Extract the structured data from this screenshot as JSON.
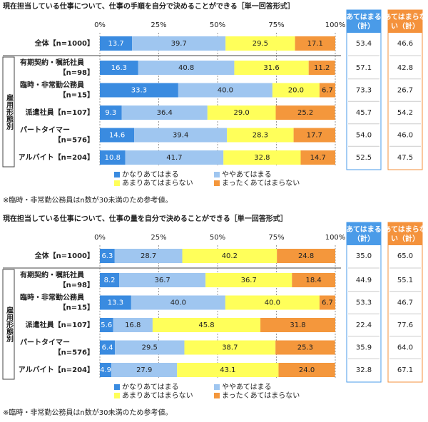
{
  "chart_data": [
    {
      "type": "bar",
      "orientation": "horizontal",
      "stacked": true,
      "title": "現在担当している仕事について、仕事の手順を自分で決めることができる［単一回答形式］",
      "categories": [
        [
          "全体【n=1000】"
        ],
        [
          "有期契約・嘱託社員",
          "【n=98】"
        ],
        [
          "臨時・非常勤公務員",
          "【n=15】"
        ],
        [
          "派遣社員【n=107】"
        ],
        [
          "パートタイマー",
          "【n=576】"
        ],
        [
          "アルバイト【n=204】"
        ]
      ],
      "group_label": "雇用形態別",
      "xlim": [
        0,
        100
      ],
      "xticks": [
        {
          "value": 0,
          "label": "0%"
        },
        {
          "value": 25,
          "label": "25%"
        },
        {
          "value": 50,
          "label": "50%"
        },
        {
          "value": 75,
          "label": "75%"
        },
        {
          "value": 100,
          "label": "100%"
        }
      ],
      "grid": true,
      "series": [
        {
          "name": "かなりあてはまる",
          "color": "#3a8be0",
          "label_color": "#ffffff",
          "values": [
            13.7,
            16.3,
            33.3,
            9.3,
            14.6,
            10.8
          ],
          "value_labels": [
            "13.7",
            "16.3",
            "33.3",
            "9.3",
            "14.6",
            "10.8"
          ]
        },
        {
          "name": "ややあてはまる",
          "color": "#9fc6f0",
          "label_color": "#222222",
          "values": [
            39.7,
            40.8,
            40,
            36.4,
            39.4,
            41.7
          ],
          "value_labels": [
            "39.7",
            "40.8",
            "40.0",
            "36.4",
            "39.4",
            "41.7"
          ]
        },
        {
          "name": "あまりあてはまらない",
          "color": "#ffff5a",
          "label_color": "#222222",
          "values": [
            29.5,
            31.6,
            20,
            29,
            28.3,
            32.8
          ],
          "value_labels": [
            "29.5",
            "31.6",
            "20.0",
            "29.0",
            "28.3",
            "32.8"
          ]
        },
        {
          "name": "まったくあてはまらない",
          "color": "#f4973c",
          "label_color": "#222222",
          "values": [
            17.1,
            11.2,
            6.7,
            25.2,
            17.7,
            14.7
          ],
          "value_labels": [
            "17.1",
            "11.2",
            "6.7",
            "25.2",
            "17.7",
            "14.7"
          ]
        }
      ],
      "summary_columns": [
        {
          "name": [
            "あてはまる",
            "（計）"
          ],
          "color": "#4a9be8",
          "values": [
            53.4,
            57.1,
            73.3,
            45.7,
            54,
            52.5
          ],
          "value_labels": [
            "53.4",
            "57.1",
            "73.3",
            "45.7",
            "54.0",
            "52.5"
          ]
        },
        {
          "name": [
            "あてはまらな",
            "い（計）"
          ],
          "color": "#f4923c",
          "values": [
            46.6,
            42.8,
            26.7,
            54.2,
            46,
            47.5
          ],
          "value_labels": [
            "46.6",
            "42.8",
            "26.7",
            "54.2",
            "46.0",
            "47.5"
          ]
        }
      ],
      "note": "※臨時・非常勤公務員はn数が30未満のため参考値。"
    },
    {
      "type": "bar",
      "orientation": "horizontal",
      "stacked": true,
      "title": "現在担当している仕事について、仕事の量を自分で決めることができる［単一回答形式］",
      "categories": [
        [
          "全体【n=1000】"
        ],
        [
          "有期契約・嘱託社員",
          "【n=98】"
        ],
        [
          "臨時・非常勤公務員",
          "【n=15】"
        ],
        [
          "派遣社員【n=107】"
        ],
        [
          "パートタイマー",
          "【n=576】"
        ],
        [
          "アルバイト【n=204】"
        ]
      ],
      "group_label": "雇用形態別",
      "xlim": [
        0,
        100
      ],
      "xticks": [
        {
          "value": 0,
          "label": "0%"
        },
        {
          "value": 25,
          "label": "25%"
        },
        {
          "value": 50,
          "label": "50%"
        },
        {
          "value": 75,
          "label": "75%"
        },
        {
          "value": 100,
          "label": "100%"
        }
      ],
      "grid": true,
      "series": [
        {
          "name": "かなりあてはまる",
          "color": "#3a8be0",
          "label_color": "#ffffff",
          "values": [
            6.3,
            8.2,
            13.3,
            5.6,
            6.4,
            4.9
          ],
          "value_labels": [
            "6.3",
            "8.2",
            "13.3",
            "5.6",
            "6.4",
            "4.9"
          ]
        },
        {
          "name": "ややあてはまる",
          "color": "#9fc6f0",
          "label_color": "#222222",
          "values": [
            28.7,
            36.7,
            40,
            16.8,
            29.5,
            27.9
          ],
          "value_labels": [
            "28.7",
            "36.7",
            "40.0",
            "16.8",
            "29.5",
            "27.9"
          ]
        },
        {
          "name": "あまりあてはまらない",
          "color": "#ffff5a",
          "label_color": "#222222",
          "values": [
            40.2,
            36.7,
            40,
            45.8,
            38.7,
            43.1
          ],
          "value_labels": [
            "40.2",
            "36.7",
            "40.0",
            "45.8",
            "38.7",
            "43.1"
          ]
        },
        {
          "name": "まったくあてはまらない",
          "color": "#f4973c",
          "label_color": "#222222",
          "values": [
            24.8,
            18.4,
            6.7,
            31.8,
            25.3,
            24
          ],
          "value_labels": [
            "24.8",
            "18.4",
            "6.7",
            "31.8",
            "25.3",
            "24.0"
          ]
        }
      ],
      "summary_columns": [
        {
          "name": [
            "あてはまる",
            "（計）"
          ],
          "color": "#4a9be8",
          "values": [
            35,
            44.9,
            53.3,
            22.4,
            35.9,
            32.8
          ],
          "value_labels": [
            "35.0",
            "44.9",
            "53.3",
            "22.4",
            "35.9",
            "32.8"
          ]
        },
        {
          "name": [
            "あてはまらな",
            "い（計）"
          ],
          "color": "#f4923c",
          "values": [
            65,
            55.1,
            46.7,
            77.6,
            64,
            67.1
          ],
          "value_labels": [
            "65.0",
            "55.1",
            "46.7",
            "77.6",
            "64.0",
            "67.1"
          ]
        }
      ],
      "note": "※臨時・非常勤公務員はn数が30未満のため参考値。"
    }
  ]
}
